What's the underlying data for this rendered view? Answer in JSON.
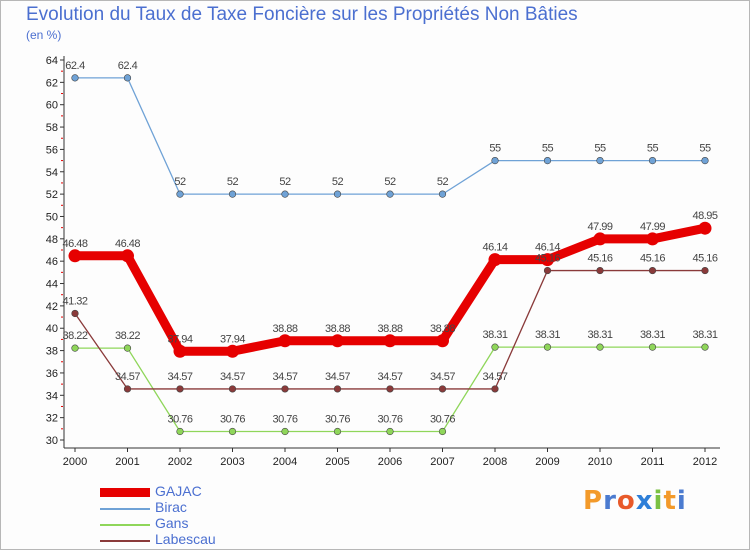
{
  "header": {
    "title": "Evolution du Taux de Taxe Foncière sur les Propriétés Non Bâties",
    "subtitle": "(en %)"
  },
  "logo": {
    "letters": [
      "P",
      "r",
      "o",
      "x",
      "i",
      "t",
      "i"
    ],
    "colors": [
      "#f39a2a",
      "#4b7bd0",
      "#e85a2a",
      "#2e7fd8",
      "#7ac143",
      "#f39a2a",
      "#4b7bd0"
    ]
  },
  "chart_data": {
    "type": "line",
    "title": "Evolution du Taux de Taxe Foncière sur les Propriétés Non Bâties",
    "ylabel": "(en %)",
    "xlabel": "",
    "categories": [
      "2000",
      "2001",
      "2002",
      "2003",
      "2004",
      "2005",
      "2006",
      "2007",
      "2008",
      "2009",
      "2010",
      "2011",
      "2012"
    ],
    "ylim": [
      30,
      64
    ],
    "yticks": [
      30,
      32,
      34,
      36,
      38,
      40,
      42,
      44,
      46,
      48,
      50,
      52,
      54,
      56,
      58,
      60,
      62,
      64
    ],
    "series": [
      {
        "name": "GAJAC",
        "color": "#e60000",
        "values": [
          46.48,
          46.48,
          37.94,
          37.94,
          38.88,
          38.88,
          38.88,
          38.88,
          46.14,
          46.14,
          47.99,
          47.99,
          48.95
        ],
        "labels": [
          "46.48",
          "46.48",
          "37.94",
          "37.94",
          "38.88",
          "38.88",
          "38.88",
          "38.88",
          "46.14",
          "46.14",
          "47.99",
          "47.99",
          "48.95"
        ]
      },
      {
        "name": "Birac",
        "color": "#6fa2d6",
        "values": [
          62.4,
          62.4,
          52,
          52,
          52,
          52,
          52,
          52,
          55,
          55,
          55,
          55,
          55
        ],
        "labels": [
          "62.4",
          "62.4",
          "52",
          "52",
          "52",
          "52",
          "52",
          "52",
          "55",
          "55",
          "55",
          "55",
          "55"
        ]
      },
      {
        "name": "Gans",
        "color": "#8fd65a",
        "values": [
          38.22,
          38.22,
          30.76,
          30.76,
          30.76,
          30.76,
          30.76,
          30.76,
          38.31,
          38.31,
          38.31,
          38.31,
          38.31
        ],
        "labels": [
          "38.22",
          "38.22",
          "30.76",
          "30.76",
          "30.76",
          "30.76",
          "30.76",
          "30.76",
          "38.31",
          "38.31",
          "38.31",
          "38.31",
          "38.31"
        ]
      },
      {
        "name": "Labescau",
        "color": "#8a3a3a",
        "values": [
          41.32,
          34.57,
          34.57,
          34.57,
          34.57,
          34.57,
          34.57,
          34.57,
          34.57,
          45.16,
          45.16,
          45.16,
          45.16
        ],
        "labels": [
          "41.32",
          "34.57",
          "34.57",
          "34.57",
          "34.57",
          "34.57",
          "34.57",
          "34.57",
          "34.57",
          "45.16",
          "45.16",
          "45.16",
          "45.16"
        ]
      }
    ],
    "legend_position": "bottom-left",
    "grid": false
  }
}
